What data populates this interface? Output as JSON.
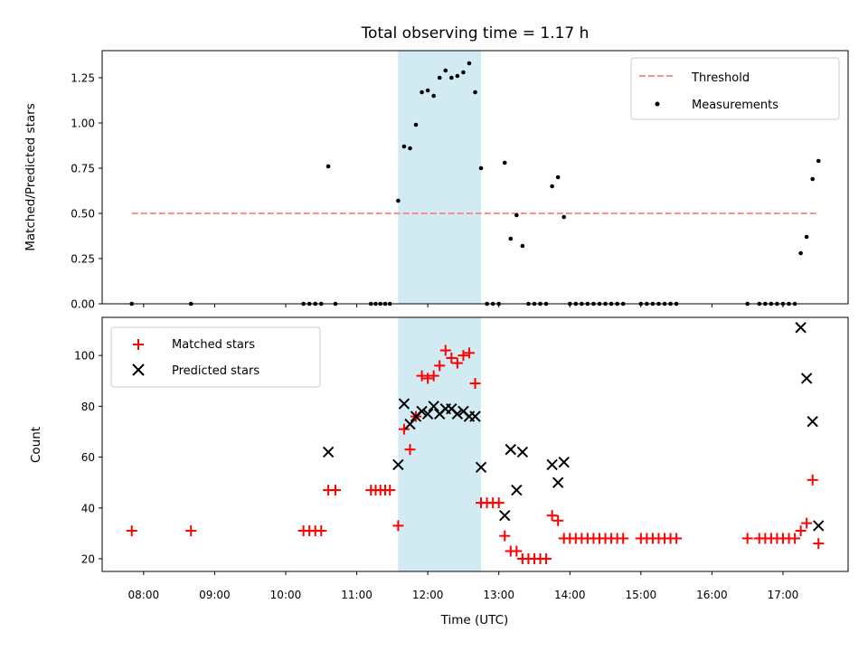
{
  "chart_data": [
    {
      "type": "scatter",
      "title": "Total observing time = 1.17 h",
      "xlabel": "",
      "ylabel": "Matched/Predicted stars",
      "ylim": [
        0,
        1.4
      ],
      "yticks": [
        "0.00",
        "0.25",
        "0.50",
        "0.75",
        "1.00",
        "1.25"
      ],
      "highlight_span": [
        "11:35",
        "12:45"
      ],
      "highlight_color": "#add8e6",
      "legend_position": "upper right",
      "legend": [
        "Threshold",
        "Measurements"
      ],
      "series": [
        {
          "name": "Threshold",
          "kind": "line",
          "style": "dashed",
          "color": "#ff7f7f",
          "points": [
            [
              "07:50",
              0.5
            ],
            [
              "17:30",
              0.5
            ]
          ]
        },
        {
          "name": "Measurements",
          "kind": "dot",
          "color": "#000000",
          "points": [
            [
              "07:50",
              0
            ],
            [
              "08:40",
              0
            ],
            [
              "10:15",
              0
            ],
            [
              "10:20",
              0
            ],
            [
              "10:25",
              0
            ],
            [
              "10:30",
              0
            ],
            [
              "10:36",
              0.76
            ],
            [
              "10:42",
              0
            ],
            [
              "11:12",
              0
            ],
            [
              "11:16",
              0
            ],
            [
              "11:20",
              0
            ],
            [
              "11:24",
              0
            ],
            [
              "11:28",
              0
            ],
            [
              "11:35",
              0.57
            ],
            [
              "11:40",
              0.87
            ],
            [
              "11:45",
              0.86
            ],
            [
              "11:50",
              0.99
            ],
            [
              "11:55",
              1.17
            ],
            [
              "12:00",
              1.18
            ],
            [
              "12:05",
              1.15
            ],
            [
              "12:10",
              1.25
            ],
            [
              "12:15",
              1.29
            ],
            [
              "12:20",
              1.25
            ],
            [
              "12:25",
              1.26
            ],
            [
              "12:30",
              1.28
            ],
            [
              "12:35",
              1.33
            ],
            [
              "12:40",
              1.17
            ],
            [
              "12:45",
              0.75
            ],
            [
              "12:50",
              0
            ],
            [
              "12:55",
              0
            ],
            [
              "13:00",
              0
            ],
            [
              "13:05",
              0.78
            ],
            [
              "13:10",
              0.36
            ],
            [
              "13:15",
              0.49
            ],
            [
              "13:20",
              0.32
            ],
            [
              "13:25",
              0
            ],
            [
              "13:30",
              0
            ],
            [
              "13:35",
              0
            ],
            [
              "13:40",
              0
            ],
            [
              "13:45",
              0.65
            ],
            [
              "13:50",
              0.7
            ],
            [
              "13:55",
              0.48
            ],
            [
              "14:00",
              0
            ],
            [
              "14:05",
              0
            ],
            [
              "14:10",
              0
            ],
            [
              "14:15",
              0
            ],
            [
              "14:20",
              0
            ],
            [
              "14:25",
              0
            ],
            [
              "14:30",
              0
            ],
            [
              "14:35",
              0
            ],
            [
              "14:40",
              0
            ],
            [
              "14:45",
              0
            ],
            [
              "15:00",
              0
            ],
            [
              "15:05",
              0
            ],
            [
              "15:10",
              0
            ],
            [
              "15:15",
              0
            ],
            [
              "15:20",
              0
            ],
            [
              "15:25",
              0
            ],
            [
              "15:30",
              0
            ],
            [
              "16:30",
              0
            ],
            [
              "16:40",
              0
            ],
            [
              "16:45",
              0
            ],
            [
              "16:50",
              0
            ],
            [
              "16:55",
              0
            ],
            [
              "17:00",
              0
            ],
            [
              "17:05",
              0
            ],
            [
              "17:10",
              0
            ],
            [
              "17:15",
              0.28
            ],
            [
              "17:20",
              0.37
            ],
            [
              "17:25",
              0.69
            ],
            [
              "17:30",
              0.79
            ]
          ]
        }
      ]
    },
    {
      "type": "scatter",
      "title": "",
      "xlabel": "Time (UTC)",
      "ylabel": "Count",
      "ylim": [
        15,
        115
      ],
      "yticks": [
        "20",
        "40",
        "60",
        "80",
        "100"
      ],
      "xlim": [
        "07:25",
        "17:55"
      ],
      "xticks": [
        "08:00",
        "09:00",
        "10:00",
        "11:00",
        "12:00",
        "13:00",
        "14:00",
        "15:00",
        "16:00",
        "17:00"
      ],
      "highlight_span": [
        "11:35",
        "12:45"
      ],
      "highlight_color": "#add8e6",
      "legend_position": "upper left",
      "legend": [
        "Matched stars",
        "Predicted stars"
      ],
      "series": [
        {
          "name": "Matched stars",
          "kind": "plus",
          "color": "#ff0000",
          "points": [
            [
              "07:50",
              31
            ],
            [
              "08:40",
              31
            ],
            [
              "10:15",
              31
            ],
            [
              "10:20",
              31
            ],
            [
              "10:25",
              31
            ],
            [
              "10:30",
              31
            ],
            [
              "10:36",
              47
            ],
            [
              "10:42",
              47
            ],
            [
              "11:12",
              47
            ],
            [
              "11:16",
              47
            ],
            [
              "11:20",
              47
            ],
            [
              "11:24",
              47
            ],
            [
              "11:28",
              47
            ],
            [
              "11:35",
              33
            ],
            [
              "11:40",
              71
            ],
            [
              "11:45",
              63
            ],
            [
              "11:50",
              76
            ],
            [
              "11:55",
              92
            ],
            [
              "12:00",
              91
            ],
            [
              "12:05",
              92
            ],
            [
              "12:10",
              96
            ],
            [
              "12:15",
              102
            ],
            [
              "12:20",
              99
            ],
            [
              "12:25",
              97
            ],
            [
              "12:30",
              100
            ],
            [
              "12:35",
              101
            ],
            [
              "12:40",
              89
            ],
            [
              "12:45",
              42
            ],
            [
              "12:50",
              42
            ],
            [
              "12:55",
              42
            ],
            [
              "13:00",
              42
            ],
            [
              "13:05",
              29
            ],
            [
              "13:10",
              23
            ],
            [
              "13:15",
              23
            ],
            [
              "13:20",
              20
            ],
            [
              "13:25",
              20
            ],
            [
              "13:30",
              20
            ],
            [
              "13:35",
              20
            ],
            [
              "13:40",
              20
            ],
            [
              "13:45",
              37
            ],
            [
              "13:50",
              35
            ],
            [
              "13:55",
              28
            ],
            [
              "14:00",
              28
            ],
            [
              "14:05",
              28
            ],
            [
              "14:10",
              28
            ],
            [
              "14:15",
              28
            ],
            [
              "14:20",
              28
            ],
            [
              "14:25",
              28
            ],
            [
              "14:30",
              28
            ],
            [
              "14:35",
              28
            ],
            [
              "14:40",
              28
            ],
            [
              "14:45",
              28
            ],
            [
              "15:00",
              28
            ],
            [
              "15:05",
              28
            ],
            [
              "15:10",
              28
            ],
            [
              "15:15",
              28
            ],
            [
              "15:20",
              28
            ],
            [
              "15:25",
              28
            ],
            [
              "15:30",
              28
            ],
            [
              "16:30",
              28
            ],
            [
              "16:40",
              28
            ],
            [
              "16:45",
              28
            ],
            [
              "16:50",
              28
            ],
            [
              "16:55",
              28
            ],
            [
              "17:00",
              28
            ],
            [
              "17:05",
              28
            ],
            [
              "17:10",
              28
            ],
            [
              "17:15",
              31
            ],
            [
              "17:20",
              34
            ],
            [
              "17:25",
              51
            ],
            [
              "17:30",
              26
            ]
          ]
        },
        {
          "name": "Predicted stars",
          "kind": "cross",
          "color": "#000000",
          "points": [
            [
              "10:36",
              62
            ],
            [
              "11:35",
              57
            ],
            [
              "11:40",
              81
            ],
            [
              "11:45",
              73
            ],
            [
              "11:50",
              76
            ],
            [
              "11:55",
              78
            ],
            [
              "12:00",
              77
            ],
            [
              "12:05",
              80
            ],
            [
              "12:10",
              77
            ],
            [
              "12:15",
              79
            ],
            [
              "12:20",
              79
            ],
            [
              "12:25",
              77
            ],
            [
              "12:30",
              78
            ],
            [
              "12:35",
              76
            ],
            [
              "12:40",
              76
            ],
            [
              "12:45",
              56
            ],
            [
              "13:05",
              37
            ],
            [
              "13:10",
              63
            ],
            [
              "13:15",
              47
            ],
            [
              "13:20",
              62
            ],
            [
              "13:45",
              57
            ],
            [
              "13:50",
              50
            ],
            [
              "13:55",
              58
            ],
            [
              "17:15",
              111
            ],
            [
              "17:20",
              91
            ],
            [
              "17:25",
              74
            ],
            [
              "17:30",
              33
            ]
          ]
        }
      ]
    }
  ]
}
